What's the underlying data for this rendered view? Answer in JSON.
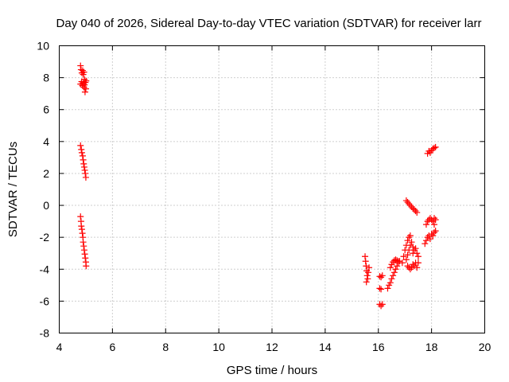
{
  "chart_data": {
    "type": "scatter",
    "title": "Day 040 of 2026, Sidereal Day-to-day VTEC variation (SDTVAR) for receiver larr",
    "xlabel": "GPS time / hours",
    "ylabel": "SDTVAR / TECUs",
    "xlim": [
      4,
      20
    ],
    "ylim": [
      -8,
      10
    ],
    "xticks": [
      "4",
      "6",
      "8",
      "10",
      "12",
      "14",
      "16",
      "18",
      "20"
    ],
    "yticks": [
      "-8",
      "-6",
      "-4",
      "-2",
      "0",
      "2",
      "4",
      "6",
      "8",
      "10"
    ],
    "grid": true,
    "marker": "+",
    "color": "#ff0000",
    "series": [
      {
        "name": "SDTVAR",
        "points": [
          [
            4.8,
            8.75
          ],
          [
            4.82,
            8.5
          ],
          [
            4.85,
            8.3
          ],
          [
            4.88,
            8.45
          ],
          [
            4.9,
            8.2
          ],
          [
            4.93,
            8.35
          ],
          [
            4.95,
            7.9
          ],
          [
            4.8,
            7.6
          ],
          [
            4.84,
            7.75
          ],
          [
            4.87,
            7.5
          ],
          [
            4.9,
            7.65
          ],
          [
            4.93,
            7.4
          ],
          [
            4.95,
            7.55
          ],
          [
            4.98,
            7.7
          ],
          [
            5.0,
            7.3
          ],
          [
            4.97,
            7.1
          ],
          [
            5.01,
            7.8
          ],
          [
            4.8,
            3.75
          ],
          [
            4.83,
            3.5
          ],
          [
            4.85,
            3.3
          ],
          [
            4.88,
            3.1
          ],
          [
            4.9,
            2.85
          ],
          [
            4.92,
            2.6
          ],
          [
            4.94,
            2.4
          ],
          [
            4.96,
            2.2
          ],
          [
            4.98,
            2.0
          ],
          [
            5.0,
            1.75
          ],
          [
            4.8,
            -0.7
          ],
          [
            4.82,
            -1.0
          ],
          [
            4.83,
            -1.3
          ],
          [
            4.85,
            -1.5
          ],
          [
            4.87,
            -1.75
          ],
          [
            4.89,
            -2.0
          ],
          [
            4.9,
            -2.3
          ],
          [
            4.92,
            -2.55
          ],
          [
            4.94,
            -2.8
          ],
          [
            4.96,
            -3.05
          ],
          [
            4.98,
            -3.3
          ],
          [
            5.0,
            -3.55
          ],
          [
            5.01,
            -3.8
          ],
          [
            15.5,
            -3.2
          ],
          [
            15.52,
            -3.5
          ],
          [
            15.54,
            -3.8
          ],
          [
            15.56,
            -4.1
          ],
          [
            15.58,
            -4.4
          ],
          [
            15.6,
            -4.6
          ],
          [
            15.55,
            -4.8
          ],
          [
            15.62,
            -4.2
          ],
          [
            15.65,
            -3.9
          ],
          [
            16.05,
            -4.45
          ],
          [
            16.1,
            -4.5
          ],
          [
            16.15,
            -4.4
          ],
          [
            16.05,
            -5.2
          ],
          [
            16.1,
            -5.25
          ],
          [
            16.05,
            -6.2
          ],
          [
            16.1,
            -6.3
          ],
          [
            16.15,
            -6.2
          ],
          [
            16.35,
            -5.2
          ],
          [
            16.4,
            -5.0
          ],
          [
            16.45,
            -4.85
          ],
          [
            16.5,
            -4.6
          ],
          [
            16.55,
            -4.4
          ],
          [
            16.6,
            -4.2
          ],
          [
            16.65,
            -4.0
          ],
          [
            16.7,
            -3.8
          ],
          [
            16.75,
            -3.6
          ],
          [
            16.8,
            -3.5
          ],
          [
            16.45,
            -3.9
          ],
          [
            16.5,
            -3.7
          ],
          [
            16.55,
            -3.55
          ],
          [
            16.6,
            -3.45
          ],
          [
            16.65,
            -3.4
          ],
          [
            16.7,
            -3.45
          ],
          [
            16.75,
            -3.5
          ],
          [
            16.9,
            -3.6
          ],
          [
            16.95,
            -3.2
          ],
          [
            17.0,
            -2.8
          ],
          [
            17.05,
            -2.5
          ],
          [
            17.1,
            -2.2
          ],
          [
            17.15,
            -2.0
          ],
          [
            17.2,
            -1.9
          ],
          [
            17.05,
            -3.4
          ],
          [
            17.1,
            -3.1
          ],
          [
            17.15,
            -2.8
          ],
          [
            17.2,
            -2.5
          ],
          [
            17.25,
            -2.3
          ],
          [
            17.3,
            -2.6
          ],
          [
            17.1,
            -3.8
          ],
          [
            17.15,
            -3.9
          ],
          [
            17.2,
            -4.0
          ],
          [
            17.25,
            -3.9
          ],
          [
            17.3,
            -3.7
          ],
          [
            17.35,
            -3.8
          ],
          [
            17.4,
            -3.6
          ],
          [
            17.45,
            -3.9
          ],
          [
            17.5,
            -3.6
          ],
          [
            17.3,
            -3.0
          ],
          [
            17.35,
            -2.8
          ],
          [
            17.4,
            -2.7
          ],
          [
            17.45,
            -3.0
          ],
          [
            17.5,
            -3.2
          ],
          [
            17.05,
            0.3
          ],
          [
            17.1,
            0.2
          ],
          [
            17.15,
            0.1
          ],
          [
            17.2,
            0.0
          ],
          [
            17.25,
            -0.1
          ],
          [
            17.3,
            -0.2
          ],
          [
            17.35,
            -0.25
          ],
          [
            17.4,
            -0.35
          ],
          [
            17.45,
            -0.45
          ],
          [
            17.75,
            -2.4
          ],
          [
            17.8,
            -2.2
          ],
          [
            17.85,
            -2.0
          ],
          [
            17.9,
            -1.9
          ],
          [
            17.95,
            -2.1
          ],
          [
            18.0,
            -1.8
          ],
          [
            18.05,
            -1.9
          ],
          [
            18.1,
            -1.7
          ],
          [
            18.15,
            -1.6
          ],
          [
            17.8,
            -1.2
          ],
          [
            17.85,
            -1.0
          ],
          [
            17.9,
            -0.9
          ],
          [
            17.95,
            -0.8
          ],
          [
            18.0,
            -0.9
          ],
          [
            18.05,
            -1.0
          ],
          [
            18.1,
            -0.8
          ],
          [
            18.15,
            -0.9
          ],
          [
            18.1,
            -1.2
          ],
          [
            17.85,
            3.25
          ],
          [
            17.9,
            3.4
          ],
          [
            17.95,
            3.3
          ],
          [
            18.0,
            3.45
          ],
          [
            18.05,
            3.55
          ],
          [
            18.1,
            3.6
          ],
          [
            18.15,
            3.65
          ]
        ]
      }
    ]
  }
}
